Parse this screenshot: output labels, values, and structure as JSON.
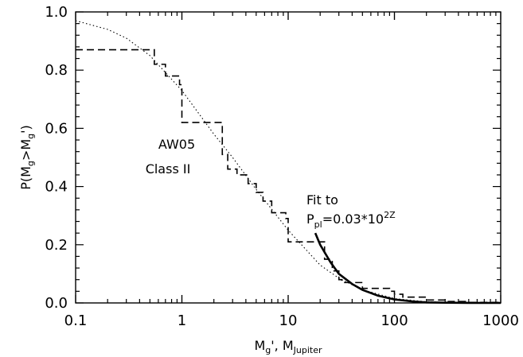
{
  "chart_data": {
    "type": "line",
    "title": "",
    "xlabel": "M_g', M_Jupiter",
    "ylabel": "P(M_g>M_g')",
    "xscale": "log",
    "xlim": [
      0.1,
      1000
    ],
    "ylim": [
      0.0,
      1.0
    ],
    "x_ticks": [
      "0.1",
      "1",
      "10",
      "100",
      "1000"
    ],
    "y_ticks": [
      "0.0",
      "0.2",
      "0.4",
      "0.6",
      "0.8",
      "1.0"
    ],
    "grid": false,
    "series": [
      {
        "name": "AW05 Class II",
        "style": "dashed step",
        "x": [
          0.1,
          0.42,
          0.55,
          0.7,
          0.95,
          1.0,
          2.2,
          2.4,
          2.7,
          3.3,
          4.2,
          5.0,
          5.8,
          7.0,
          9.5,
          10.0,
          18,
          22,
          26,
          30,
          32,
          50,
          90,
          100,
          120,
          200,
          300,
          500,
          1000
        ],
        "y": [
          0.87,
          0.87,
          0.82,
          0.78,
          0.75,
          0.62,
          0.62,
          0.51,
          0.46,
          0.44,
          0.41,
          0.38,
          0.35,
          0.31,
          0.29,
          0.21,
          0.21,
          0.15,
          0.11,
          0.08,
          0.07,
          0.05,
          0.04,
          0.03,
          0.02,
          0.01,
          0.005,
          0.002,
          0.0
        ]
      },
      {
        "name": "",
        "style": "dotted",
        "x": [
          0.1,
          0.2,
          0.3,
          0.5,
          1,
          2,
          3,
          5,
          10,
          20,
          30,
          50,
          100,
          200,
          500,
          1000
        ],
        "y": [
          0.97,
          0.94,
          0.91,
          0.85,
          0.73,
          0.58,
          0.5,
          0.39,
          0.25,
          0.13,
          0.085,
          0.045,
          0.015,
          0.004,
          0.0005,
          0.0
        ]
      },
      {
        "name": "Fit to P_pl=0.03*10^2Z",
        "style": "solid",
        "x": [
          18,
          20,
          25,
          30,
          40,
          50,
          70,
          100,
          150,
          200,
          300,
          500,
          1000
        ],
        "y": [
          0.24,
          0.2,
          0.14,
          0.1,
          0.065,
          0.045,
          0.025,
          0.012,
          0.005,
          0.002,
          0.0008,
          0.0002,
          0.0
        ]
      }
    ],
    "annotations": [
      {
        "text": "AW05",
        "x": 3.0,
        "y": 0.53
      },
      {
        "text": "Class II",
        "x": 3.0,
        "y": 0.44
      },
      {
        "text": "Fit to",
        "x": 18,
        "y": 0.33
      },
      {
        "text": "P_pl=0.03*10^2Z",
        "x": 18,
        "y": 0.26
      }
    ]
  }
}
